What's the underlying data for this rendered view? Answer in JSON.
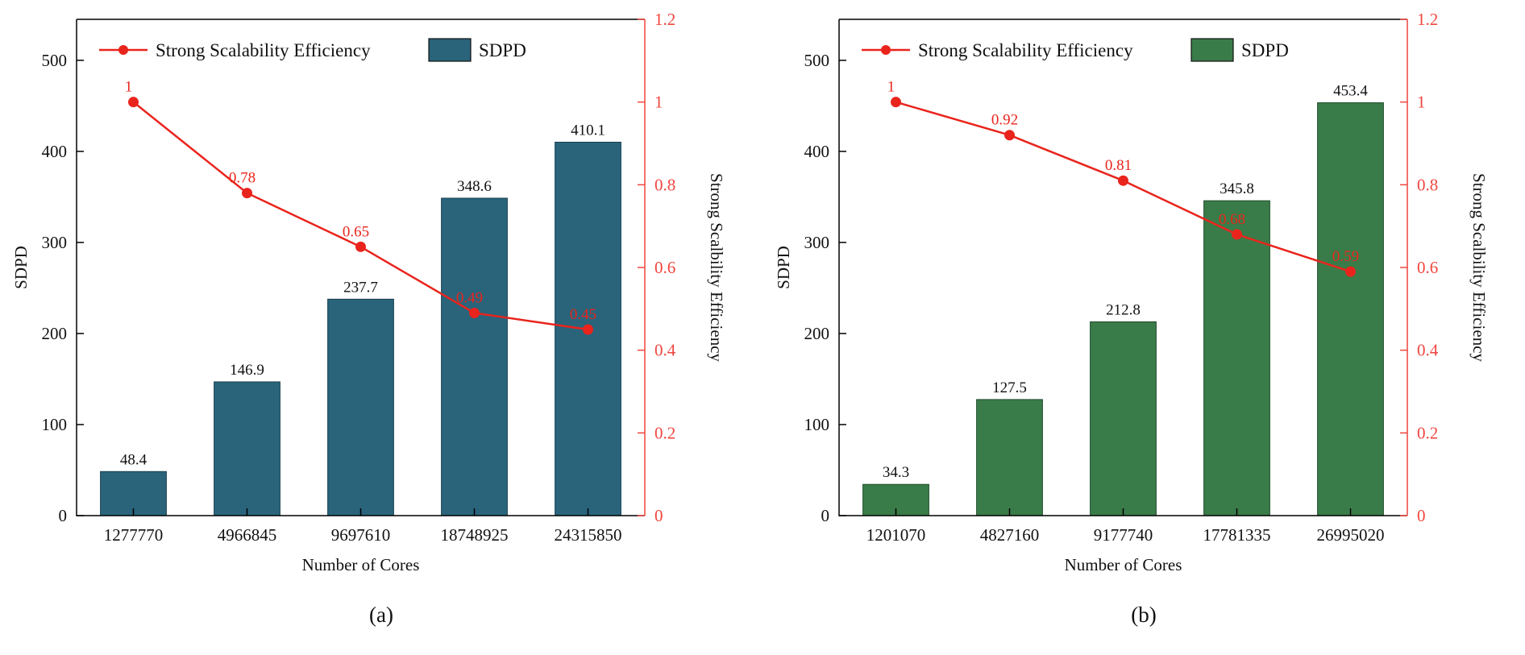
{
  "figure": {
    "background": "#ffffff"
  },
  "chart_data": [
    {
      "type": "bar",
      "subtype": "bar+line-dual-axis",
      "caption": "(a)",
      "xlabel": "Number of Cores",
      "ylabel_left": "SDPD",
      "ylabel_right": "Strong Scalbility Efficiency",
      "categories": [
        "1277770",
        "4966845",
        "9697610",
        "18748925",
        "24315850"
      ],
      "bar_series": {
        "name": "SDPD",
        "values": [
          48.4,
          146.9,
          237.7,
          348.6,
          410.1
        ],
        "labels": [
          "48.4",
          "146.9",
          "237.7",
          "348.6",
          "410.1"
        ],
        "color": "#29647b",
        "edge_color": "#17404e"
      },
      "line_series": {
        "name": "Strong Scalability Efficiency",
        "values": [
          1,
          0.78,
          0.65,
          0.49,
          0.45
        ],
        "labels": [
          "1",
          "0.78",
          "0.65",
          "0.49",
          "0.45"
        ],
        "color": "#e9241c"
      },
      "ylim_left": [
        0,
        545
      ],
      "yticks_left": {
        "values": [
          0,
          100,
          200,
          300,
          400,
          500
        ],
        "labels": [
          "0",
          "100",
          "200",
          "300",
          "400",
          "500"
        ]
      },
      "ylim_right": [
        0,
        1.2
      ],
      "yticks_right": {
        "values": [
          0,
          0.2,
          0.4,
          0.6,
          0.8,
          1,
          1.2
        ],
        "labels": [
          "0",
          "0.2",
          "0.4",
          "0.6",
          "0.8",
          "1",
          "1.2"
        ]
      },
      "right_axis_color": "#f0453e",
      "legend": {
        "line_label": "Strong Scalability Efficiency",
        "bar_label": "SDPD",
        "position": "top-inside"
      },
      "grid": false
    },
    {
      "type": "bar",
      "subtype": "bar+line-dual-axis",
      "caption": "(b)",
      "xlabel": "Number of Cores",
      "ylabel_left": "SDPD",
      "ylabel_right": "Strong Scalbility Efficiency",
      "categories": [
        "1201070",
        "4827160",
        "9177740",
        "17781335",
        "26995020"
      ],
      "bar_series": {
        "name": "SDPD",
        "values": [
          34.3,
          127.5,
          212.8,
          345.8,
          453.4
        ],
        "labels": [
          "34.3",
          "127.5",
          "212.8",
          "345.8",
          "453.4"
        ],
        "color": "#3a7c49",
        "edge_color": "#1f4a2b"
      },
      "line_series": {
        "name": "Strong Scalability Efficiency",
        "values": [
          1,
          0.92,
          0.81,
          0.68,
          0.59
        ],
        "labels": [
          "1",
          "0.92",
          "0.81",
          "0.68",
          "0.59"
        ],
        "color": "#e9241c"
      },
      "ylim_left": [
        0,
        545
      ],
      "yticks_left": {
        "values": [
          0,
          100,
          200,
          300,
          400,
          500
        ],
        "labels": [
          "0",
          "100",
          "200",
          "300",
          "400",
          "500"
        ]
      },
      "ylim_right": [
        0,
        1.2
      ],
      "yticks_right": {
        "values": [
          0,
          0.2,
          0.4,
          0.6,
          0.8,
          1,
          1.2
        ],
        "labels": [
          "0",
          "0.2",
          "0.4",
          "0.6",
          "0.8",
          "1",
          "1.2"
        ]
      },
      "right_axis_color": "#f0453e",
      "legend": {
        "line_label": "Strong Scalability Efficiency",
        "bar_label": "SDPD",
        "position": "top-inside"
      },
      "grid": false
    }
  ]
}
